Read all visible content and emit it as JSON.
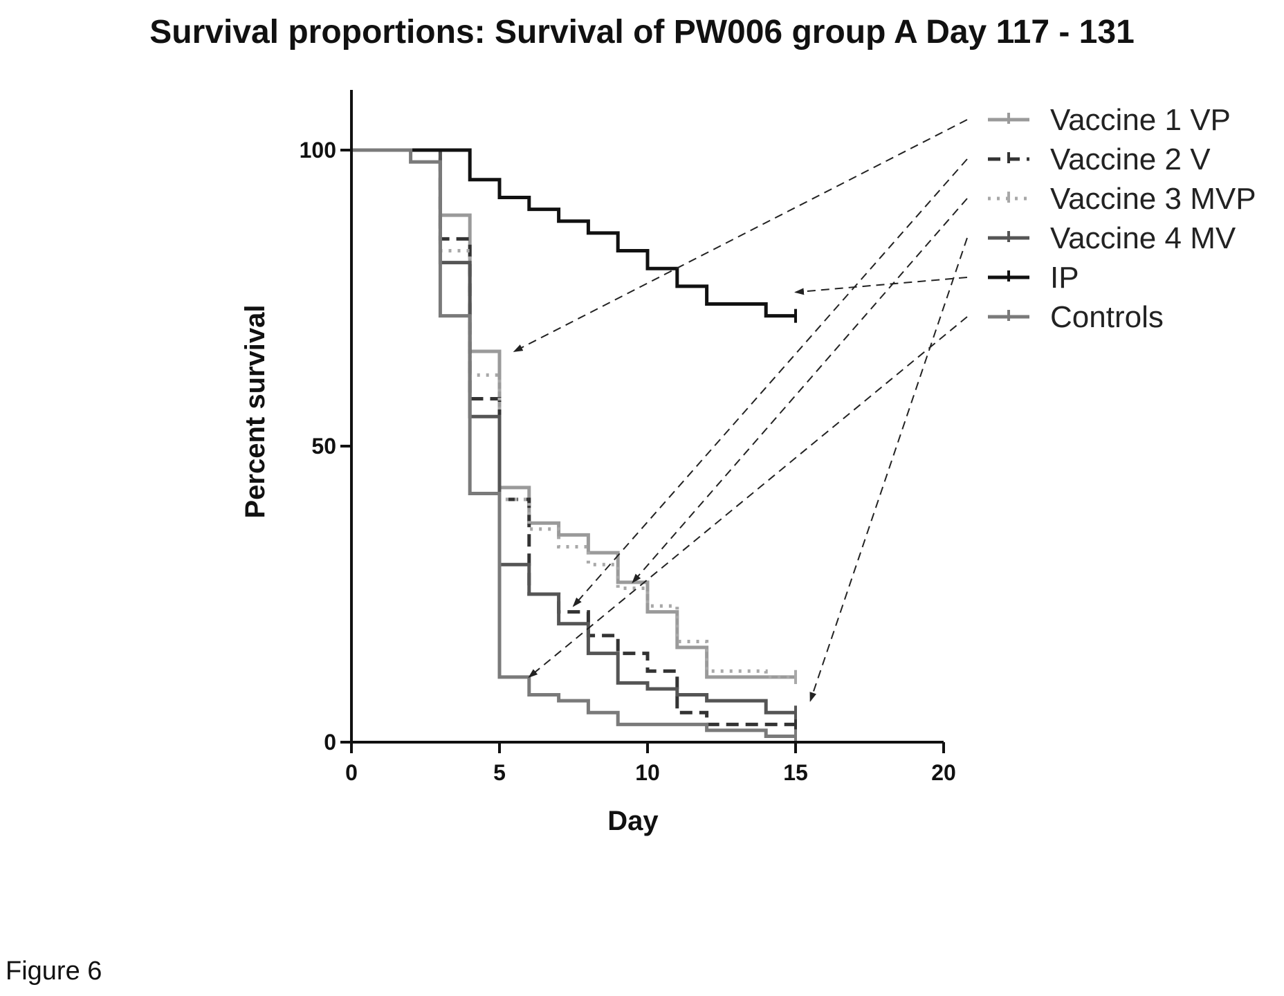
{
  "figure_caption": "Figure 6",
  "chart_data": {
    "type": "line",
    "subtype": "kaplan-meier-step",
    "title": "Survival proportions: Survival of PW006 group A Day 117 - 131",
    "xlabel": "Day",
    "ylabel": "Percent survival",
    "xlim": [
      0,
      20
    ],
    "ylim": [
      0,
      110
    ],
    "xticks": [
      0,
      5,
      10,
      15,
      20
    ],
    "xtick_labels": [
      "0",
      "5",
      "10",
      "15",
      "20"
    ],
    "yticks": [
      0,
      50,
      100
    ],
    "ytick_labels": [
      "0",
      "50",
      "100"
    ],
    "grid": false,
    "legend_position": "right",
    "series": [
      {
        "name": "Vaccine 1 VP",
        "color": "#9a9a9a",
        "dash": "solid",
        "x": [
          0,
          3,
          4,
          5,
          6,
          7,
          8,
          9,
          10,
          11,
          12,
          14,
          15
        ],
        "y": [
          100,
          89,
          66,
          43,
          37,
          35,
          32,
          27,
          22,
          16,
          11,
          11,
          11
        ]
      },
      {
        "name": "Vaccine 2 V",
        "color": "#333333",
        "dash": "dashed",
        "x": [
          0,
          3,
          4,
          5,
          6,
          7,
          8,
          9,
          10,
          11,
          12,
          14,
          15
        ],
        "y": [
          100,
          85,
          58,
          41,
          25,
          22,
          18,
          15,
          12,
          5,
          3,
          3,
          3
        ]
      },
      {
        "name": "Vaccine 3 MVP",
        "color": "#a8a8a8",
        "dash": "dotted",
        "x": [
          0,
          3,
          4,
          5,
          6,
          7,
          8,
          9,
          10,
          11,
          12,
          14,
          15
        ],
        "y": [
          100,
          83,
          62,
          41,
          36,
          33,
          30,
          26,
          23,
          17,
          12,
          11,
          11
        ]
      },
      {
        "name": "Vaccine 4 MV",
        "color": "#555555",
        "dash": "solid",
        "x": [
          0,
          3,
          4,
          5,
          6,
          7,
          8,
          9,
          10,
          11,
          12,
          14,
          15
        ],
        "y": [
          100,
          81,
          55,
          30,
          25,
          20,
          15,
          10,
          9,
          8,
          7,
          5,
          5
        ]
      },
      {
        "name": "IP",
        "color": "#111111",
        "dash": "solid",
        "x": [
          0,
          4,
          5,
          6,
          7,
          8,
          9,
          10,
          11,
          12,
          14,
          15
        ],
        "y": [
          100,
          95,
          92,
          90,
          88,
          86,
          83,
          80,
          77,
          74,
          72,
          72
        ]
      },
      {
        "name": "Controls",
        "color": "#7a7a7a",
        "dash": "solid",
        "x": [
          0,
          2,
          3,
          4,
          5,
          6,
          7,
          8,
          9,
          12,
          14,
          15
        ],
        "y": [
          100,
          98,
          72,
          42,
          11,
          8,
          7,
          5,
          3,
          2,
          1,
          1
        ]
      }
    ],
    "annotations": [
      {
        "type": "arrow",
        "from_legend": "Vaccine 1 VP",
        "to": [
          5.5,
          66
        ]
      },
      {
        "type": "arrow",
        "from_legend": "Vaccine 2 V",
        "to": [
          7.5,
          23
        ]
      },
      {
        "type": "arrow",
        "from_legend": "Vaccine 3 MVP",
        "to": [
          9.5,
          27
        ]
      },
      {
        "type": "arrow",
        "from_legend": "Vaccine 4 MV",
        "to": [
          15.5,
          7
        ]
      },
      {
        "type": "arrow",
        "from_legend": "IP",
        "to": [
          15,
          76
        ]
      },
      {
        "type": "arrow",
        "from_legend": "Controls",
        "to": [
          6,
          11
        ]
      }
    ]
  }
}
